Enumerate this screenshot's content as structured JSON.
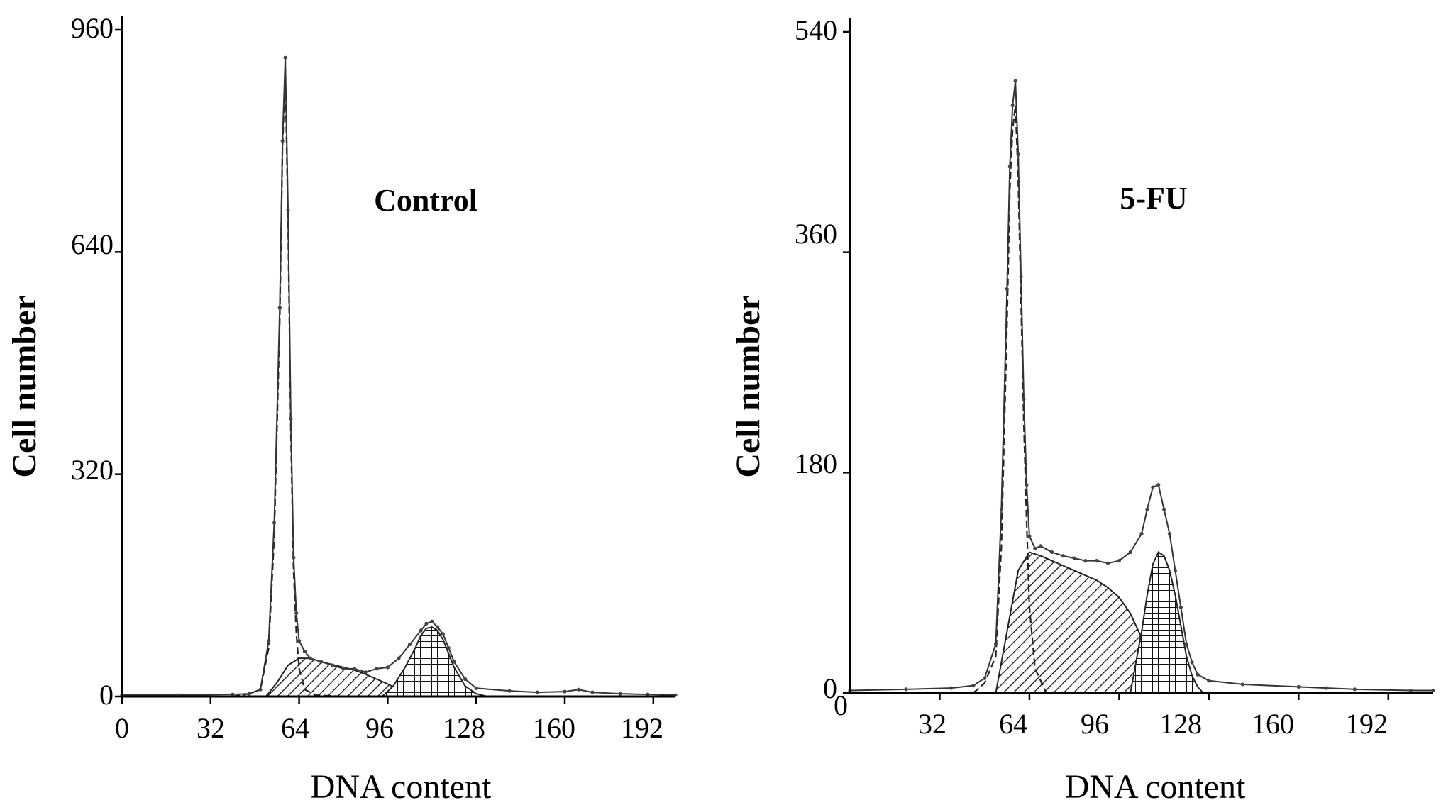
{
  "chart_data": [
    {
      "type": "area",
      "title": "",
      "annotation": "Control",
      "xlabel": "DNA content",
      "ylabel": "Cell number",
      "xlim": [
        0,
        200
      ],
      "ylim": [
        0,
        960
      ],
      "xticks": [
        0,
        32,
        64,
        96,
        128,
        160,
        192
      ],
      "yticks": [
        0,
        320,
        640,
        960
      ],
      "x_tick_labels": [
        "0",
        "32",
        "64",
        "96",
        "128",
        "160",
        "192"
      ],
      "y_tick_labels": [
        "0",
        "320",
        "640",
        "960"
      ],
      "series": [
        {
          "role": "histogram",
          "x": [
            0,
            20,
            40,
            46,
            50,
            53,
            55,
            57,
            58,
            59,
            60,
            61,
            62,
            63,
            64,
            66,
            68,
            72,
            76,
            80,
            84,
            88,
            92,
            96,
            100,
            104,
            108,
            110,
            112,
            114,
            116,
            118,
            120,
            124,
            128,
            140,
            150,
            160,
            165,
            170,
            180,
            190,
            200
          ],
          "y": [
            2,
            2,
            3,
            4,
            10,
            80,
            250,
            560,
            800,
            920,
            700,
            400,
            200,
            120,
            80,
            65,
            55,
            50,
            45,
            40,
            40,
            35,
            40,
            42,
            55,
            75,
            95,
            105,
            108,
            100,
            90,
            70,
            50,
            25,
            12,
            8,
            6,
            7,
            10,
            6,
            4,
            3,
            2
          ]
        },
        {
          "role": "G1 fit",
          "x": [
            40,
            46,
            50,
            53,
            55,
            57,
            58,
            59,
            60,
            61,
            62,
            63,
            64,
            66,
            70,
            80
          ],
          "y": [
            0,
            4,
            10,
            70,
            230,
            540,
            790,
            900,
            680,
            380,
            180,
            90,
            40,
            10,
            2,
            0
          ]
        },
        {
          "role": "S phase",
          "x": [
            52,
            56,
            60,
            64,
            68,
            72,
            76,
            80,
            84,
            88,
            92,
            96,
            100,
            104
          ],
          "y": [
            0,
            20,
            45,
            55,
            55,
            50,
            46,
            42,
            38,
            32,
            25,
            18,
            10,
            0
          ]
        },
        {
          "role": "G2/M",
          "x": [
            94,
            98,
            102,
            106,
            108,
            110,
            112,
            114,
            116,
            118,
            120,
            124,
            128,
            132
          ],
          "y": [
            0,
            15,
            40,
            70,
            88,
            98,
            100,
            95,
            82,
            62,
            42,
            15,
            4,
            0
          ]
        }
      ]
    },
    {
      "type": "area",
      "title": "",
      "annotation": "5-FU",
      "xlabel": "DNA content",
      "ylabel": "Cell number",
      "xlim": [
        0,
        208
      ],
      "ylim": [
        0,
        540
      ],
      "xticks": [
        32,
        64,
        96,
        128,
        160,
        192
      ],
      "yticks": [
        0,
        180,
        360,
        540
      ],
      "x_tick_labels": [
        "32",
        "64",
        "96",
        "128",
        "160",
        "192"
      ],
      "y_tick_labels": [
        "0",
        "180",
        "360",
        "540"
      ],
      "origin_label": "0",
      "series": [
        {
          "role": "histogram",
          "x": [
            0,
            20,
            36,
            44,
            48,
            52,
            54,
            56,
            57,
            58,
            59,
            60,
            61,
            62,
            63,
            64,
            66,
            68,
            72,
            76,
            80,
            84,
            88,
            92,
            96,
            100,
            104,
            106,
            108,
            110,
            112,
            114,
            116,
            118,
            120,
            122,
            124,
            128,
            140,
            160,
            170,
            180,
            200,
            208
          ],
          "y": [
            2,
            3,
            4,
            6,
            12,
            40,
            150,
            330,
            430,
            480,
            500,
            440,
            340,
            240,
            170,
            128,
            118,
            120,
            115,
            112,
            110,
            108,
            108,
            106,
            108,
            115,
            130,
            150,
            168,
            170,
            150,
            130,
            100,
            70,
            40,
            25,
            15,
            10,
            7,
            5,
            4,
            3,
            2,
            2
          ]
        },
        {
          "role": "G1 fit",
          "x": [
            44,
            48,
            52,
            54,
            56,
            57,
            58,
            59,
            60,
            61,
            62,
            63,
            64,
            66,
            70
          ],
          "y": [
            0,
            8,
            30,
            120,
            300,
            410,
            460,
            480,
            420,
            320,
            220,
            140,
            70,
            20,
            0
          ]
        },
        {
          "role": "S phase",
          "x": [
            52,
            56,
            60,
            64,
            68,
            72,
            76,
            80,
            84,
            88,
            92,
            96,
            100,
            104,
            108,
            112
          ],
          "y": [
            0,
            50,
            100,
            115,
            112,
            108,
            104,
            100,
            96,
            92,
            86,
            78,
            65,
            45,
            20,
            0
          ]
        },
        {
          "role": "G2/M",
          "x": [
            100,
            104,
            106,
            108,
            110,
            112,
            114,
            116,
            118,
            120,
            122,
            124,
            126
          ],
          "y": [
            0,
            50,
            80,
            105,
            115,
            112,
            100,
            80,
            55,
            30,
            14,
            5,
            0
          ]
        }
      ]
    }
  ]
}
